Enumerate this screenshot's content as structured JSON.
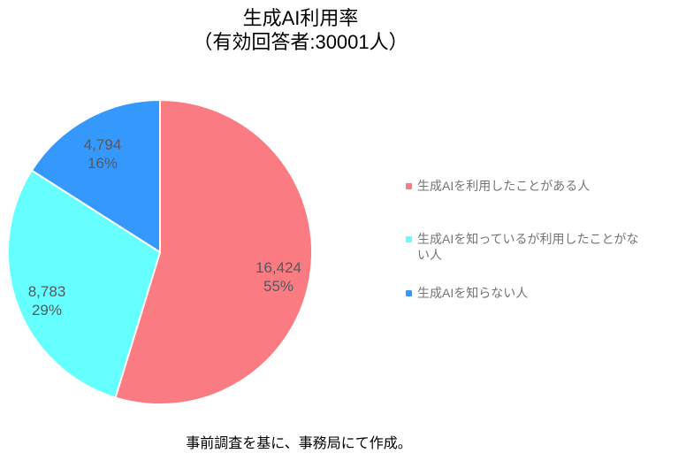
{
  "title": {
    "line1": "生成AI利用率",
    "line2": "（有効回答者:30001人）"
  },
  "footer": "事前調査を基に、事務局にて作成。",
  "chart_data": {
    "type": "pie",
    "title": "生成AI利用率（有効回答者:30001人）",
    "total_respondents": 30001,
    "labels": [
      "生成AIを利用したことがある人",
      "生成AIを知っているが利用したことがない人",
      "生成AIを知らない人"
    ],
    "values": [
      16424,
      8783,
      4794
    ],
    "values_formatted": [
      "16,424",
      "8,783",
      "4,794"
    ],
    "percents": [
      "55%",
      "29%",
      "16%"
    ],
    "colors": [
      "#fa7c82",
      "#66ffff",
      "#3598fd"
    ],
    "start_angle_deg": 0,
    "direction": "clockwise",
    "legend_position": "right",
    "slice_label_color": "#55595e",
    "legend_text_color": "#757575",
    "slice_stroke_color": "#ffffff"
  }
}
